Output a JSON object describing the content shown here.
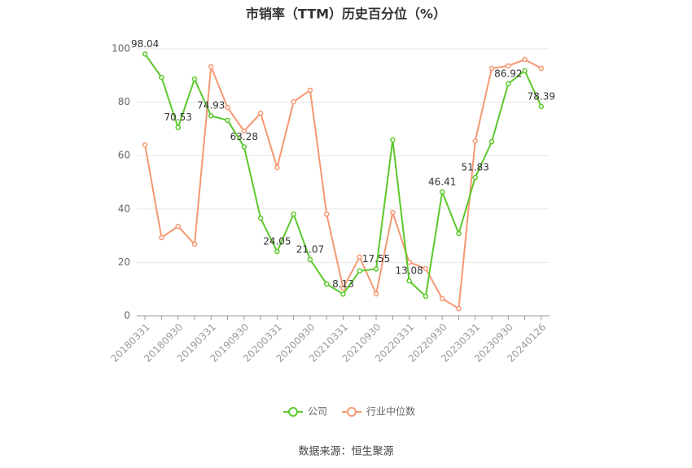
{
  "chart_data": {
    "type": "line",
    "title": "市销率（TTM）历史百分位（%）",
    "source": "数据来源：恒生聚源",
    "categories": [
      "20180331",
      null,
      "20180930",
      null,
      "20190331",
      null,
      "20190930",
      null,
      "20200331",
      null,
      "20200930",
      null,
      "20210331",
      null,
      "20210930",
      null,
      "20220331",
      null,
      "20220930",
      null,
      "20230331",
      null,
      "20230930",
      null,
      "20240126"
    ],
    "series": [
      {
        "name": "公司",
        "color": "#5cc82c",
        "values": [
          98.04,
          89.3,
          70.53,
          88.7,
          74.93,
          73.2,
          63.28,
          36.6,
          24.05,
          38.1,
          21.07,
          11.9,
          8.13,
          16.8,
          17.55,
          65.9,
          13.08,
          7.3,
          46.41,
          30.8,
          51.83,
          65.2,
          86.92,
          91.8,
          78.39
        ],
        "value_labels": [
          "98.04",
          null,
          "70.53",
          null,
          "74.93",
          null,
          "63.28",
          null,
          "24.05",
          null,
          "21.07",
          null,
          "8.13",
          null,
          "17.55",
          null,
          "13.08",
          null,
          "46.41",
          null,
          "51.83",
          null,
          "86.92",
          null,
          "78.39"
        ]
      },
      {
        "name": "行业中位数",
        "color": "#f59872",
        "values": [
          64.0,
          29.3,
          33.5,
          26.8,
          93.3,
          78.0,
          69.2,
          75.9,
          55.5,
          80.2,
          84.5,
          38.1,
          10.4,
          22.0,
          8.2,
          38.7,
          20.1,
          17.7,
          6.4,
          2.7,
          65.5,
          92.7,
          93.6,
          96.0,
          92.7
        ]
      }
    ],
    "ylim": [
      0,
      100
    ],
    "yticks": [
      0,
      20,
      40,
      60,
      80,
      100
    ],
    "grid": true
  }
}
